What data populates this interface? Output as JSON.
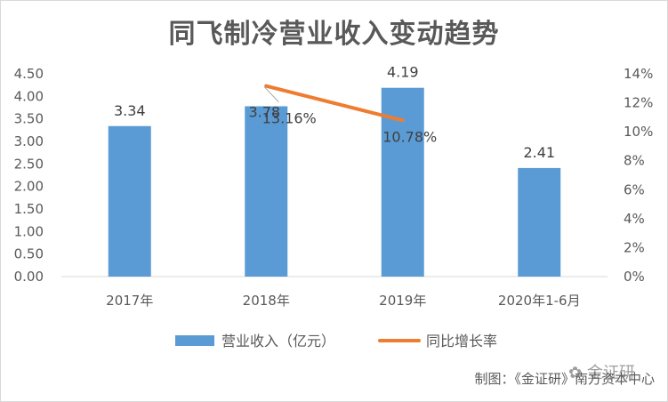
{
  "title": "同飞制冷营业收入变动趋势",
  "chart_data": {
    "type": "bar",
    "categories": [
      "2017年",
      "2018年",
      "2019年",
      "2020年1-6月"
    ],
    "series": [
      {
        "name": "营业收入（亿元）",
        "type": "bar",
        "axis": "left",
        "color": "#5b9bd5",
        "values": [
          3.34,
          3.78,
          4.19,
          2.41
        ],
        "labels": [
          "3.34",
          "3.78",
          "4.19",
          "2.41"
        ]
      },
      {
        "name": "同比增长率",
        "type": "line",
        "axis": "right",
        "color": "#ed7d31",
        "values": [
          null,
          13.16,
          10.78,
          null
        ],
        "labels": [
          "",
          "13.16%",
          "10.78%",
          ""
        ]
      }
    ],
    "y_left": {
      "range": [
        0,
        4.5
      ],
      "ticks": [
        "0.00",
        "0.50",
        "1.00",
        "1.50",
        "2.00",
        "2.50",
        "3.00",
        "3.50",
        "4.00",
        "4.50"
      ]
    },
    "y_right": {
      "range": [
        0,
        14
      ],
      "ticks": [
        "0%",
        "2%",
        "4%",
        "6%",
        "8%",
        "10%",
        "12%",
        "14%"
      ]
    },
    "legend": "bottom",
    "grid": false
  },
  "footer": "制图：《金证研》南方资本中心",
  "watermark": "金证研"
}
